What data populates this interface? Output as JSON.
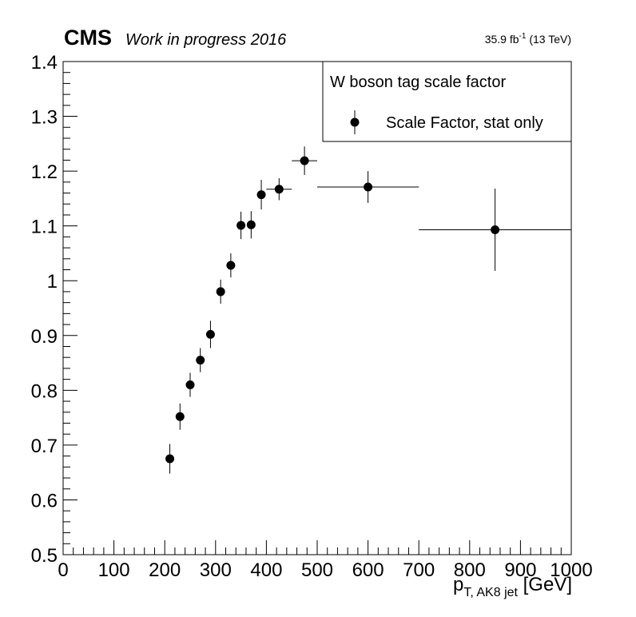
{
  "header": {
    "experiment": "CMS",
    "status": "Work in progress 2016",
    "lumi_value": "35.9 fb",
    "lumi_exp": "-1",
    "lumi_energy": " (13 TeV)"
  },
  "chart_data": {
    "type": "scatter",
    "title": "",
    "xlabel_main": "p",
    "xlabel_sub": "T, AK8 jet",
    "xlabel_unit": " [GeV]",
    "ylabel": "",
    "xlim": [
      0,
      1000
    ],
    "ylim": [
      0.5,
      1.4
    ],
    "xticks": [
      "0",
      "100",
      "200",
      "300",
      "400",
      "500",
      "600",
      "700",
      "800",
      "900",
      "1000"
    ],
    "yticks": [
      "0.5",
      "0.6",
      "0.7",
      "0.8",
      "0.9",
      "1",
      "1.1",
      "1.2",
      "1.3",
      "1.4"
    ],
    "legend": {
      "title": "W boson tag scale factor",
      "entries": [
        "Scale Factor, stat only"
      ],
      "position": "top-right"
    },
    "series": [
      {
        "name": "Scale Factor, stat only",
        "points": [
          {
            "x": 210,
            "y": 0.675,
            "xerr": 0,
            "yerr": 0.027
          },
          {
            "x": 230,
            "y": 0.752,
            "xerr": 0,
            "yerr": 0.024
          },
          {
            "x": 250,
            "y": 0.81,
            "xerr": 0,
            "yerr": 0.022
          },
          {
            "x": 270,
            "y": 0.855,
            "xerr": 0,
            "yerr": 0.022
          },
          {
            "x": 290,
            "y": 0.902,
            "xerr": 0,
            "yerr": 0.025
          },
          {
            "x": 310,
            "y": 0.98,
            "xerr": 0,
            "yerr": 0.022
          },
          {
            "x": 330,
            "y": 1.028,
            "xerr": 0,
            "yerr": 0.022
          },
          {
            "x": 350,
            "y": 1.101,
            "xerr": 0,
            "yerr": 0.025
          },
          {
            "x": 370,
            "y": 1.102,
            "xerr": 0,
            "yerr": 0.025
          },
          {
            "x": 390,
            "y": 1.157,
            "xerr": 0,
            "yerr": 0.027
          },
          {
            "x": 425,
            "y": 1.167,
            "xerr": 25,
            "yerr": 0.02
          },
          {
            "x": 475,
            "y": 1.219,
            "xerr": 25,
            "yerr": 0.026
          },
          {
            "x": 600,
            "y": 1.171,
            "xerr": 100,
            "yerr": 0.029
          },
          {
            "x": 850,
            "y": 1.093,
            "xerr": 150,
            "yerr": 0.075
          }
        ]
      }
    ]
  }
}
